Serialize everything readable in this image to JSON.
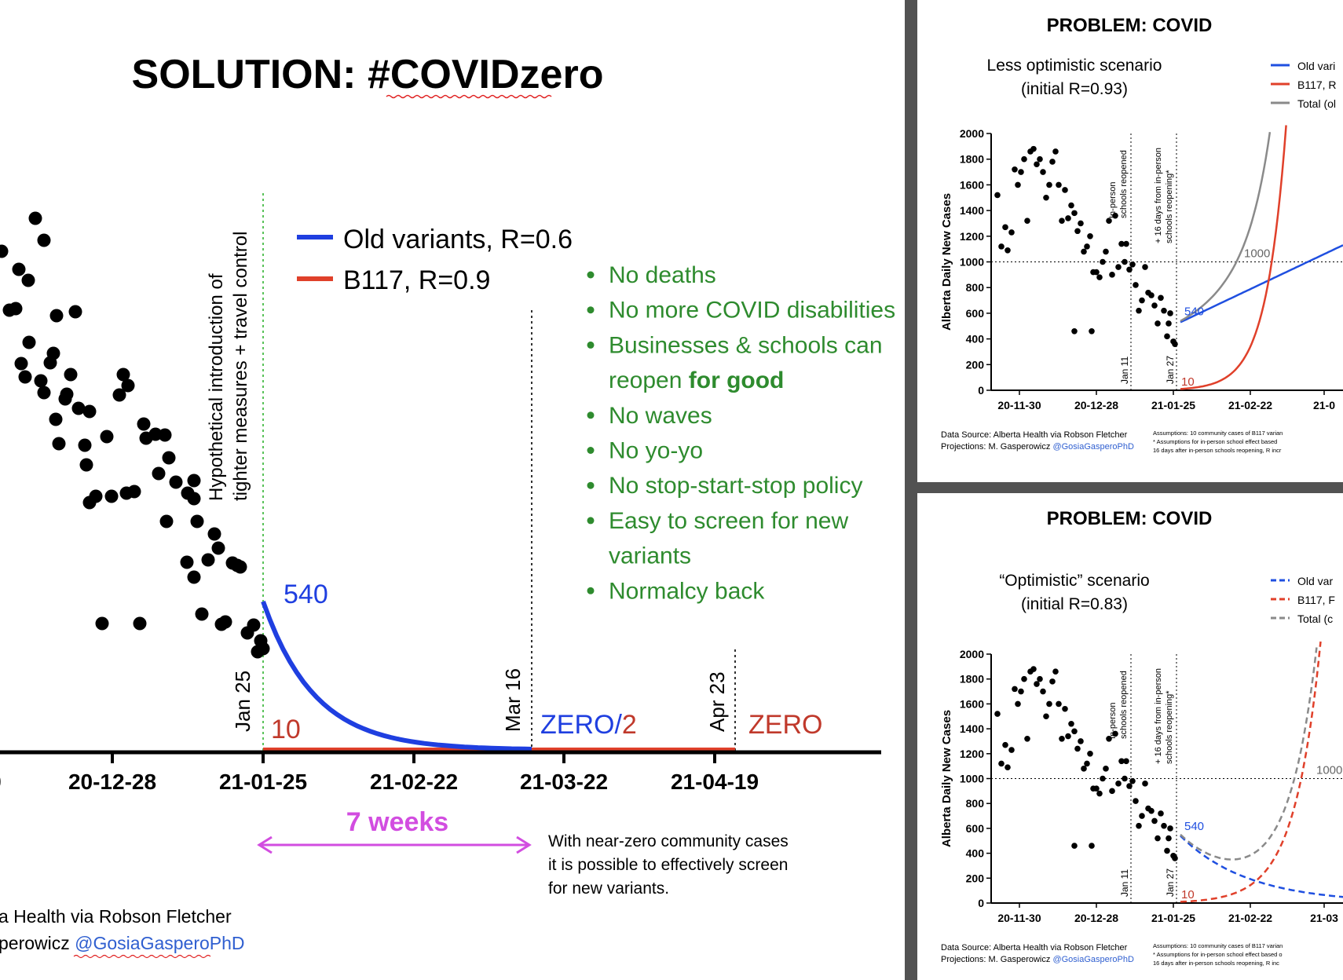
{
  "left": {
    "title": "SOLUTION: #COVIDzero",
    "vertical_annotation_line1": "Hypothetical introduction of",
    "vertical_annotation_line2": "tighter measures + travel control",
    "legend": [
      {
        "label": "Old variants, R=0.6",
        "color": "#1f3fe0"
      },
      {
        "label": "B117, R=0.9",
        "color": "#e0402a"
      }
    ],
    "bullets": [
      {
        "pre": "No deaths"
      },
      {
        "pre": "No more COVID disabilities"
      },
      {
        "pre": "Businesses & schools can"
      },
      {
        "cont": true,
        "pre": "reopen ",
        "bold": "for good"
      },
      {
        "pre": "No waves"
      },
      {
        "pre": "No yo-yo"
      },
      {
        "pre": "No stop-start-stop policy"
      },
      {
        "pre": "Easy to screen for new"
      },
      {
        "cont": true,
        "pre": "variants"
      },
      {
        "pre": "Normalcy back"
      }
    ],
    "bullet_color": "#2e8b2e",
    "vline_labels": [
      "Jan 25",
      "Mar 16",
      "Apr 23"
    ],
    "value_540": "540",
    "value_10": "10",
    "zero2_a": "ZERO/",
    "zero2_b": "2",
    "zero_label": "ZERO",
    "span_label": "7 weeks",
    "span_color": "#d24de0",
    "note_lines": [
      "With near-zero community cases",
      "it is possible to effectively screen",
      "for new variants."
    ],
    "source_line1": "a Health via Robson Fletcher",
    "source_line2_pre": "perowicz ",
    "source_line2_handle": "@GosiaGasperoPhD"
  },
  "chart_data": [
    {
      "type": "scatter",
      "title": "SOLUTION: #COVIDzero",
      "categories": [
        "0",
        "20-12-28",
        "21-01-25",
        "21-02-22",
        "21-03-22",
        "21-04-19"
      ],
      "x_tick_labels": [
        "0",
        "20-12-28",
        "21-01-25",
        "21-02-22",
        "21-03-22",
        "21-04-19"
      ],
      "series": [
        {
          "name": "Old variants, R=0.6",
          "type": "line",
          "start": 540
        },
        {
          "name": "B117, R=0.9",
          "type": "line",
          "start": 10
        }
      ],
      "annotations": [
        "540",
        "10",
        "ZERO/2",
        "ZERO",
        "7 weeks"
      ]
    },
    {
      "type": "scatter",
      "title": "PROBLEM: COVID",
      "subtitle_line1": "Less optimistic scenario",
      "subtitle_line2": "(initial R=0.93)",
      "ylabel": "Alberta Daily New Cases",
      "ylim": [
        0,
        2000
      ],
      "y_ticks": [
        "0",
        "200",
        "400",
        "600",
        "800",
        "1000",
        "1200",
        "1400",
        "1600",
        "1800",
        "2000"
      ],
      "x_ticks": [
        "20-11-30",
        "20-12-28",
        "21-01-25",
        "21-02-22",
        "21-0"
      ],
      "legend": [
        "Old vari",
        "B117, R",
        "Total (ol"
      ],
      "annotations": [
        "1000",
        "540",
        "10",
        "Jan 11",
        "Jan 27",
        "In-person",
        "schools reopened",
        "+ 16 days from in-person",
        "schools reopening*"
      ],
      "source_line1": "Data Source: Alberta Health via Robson Fletcher",
      "source_line2": "Projections: M. Gasperowicz",
      "handle": "@GosiaGasperoPhD",
      "assumptions": [
        "Assumptions: 10 community cases of B117 varian",
        "* Assumptions for in-person school effect based",
        "16 days after in-person schools reopening, R incr"
      ]
    },
    {
      "type": "scatter",
      "title": "PROBLEM: COVID",
      "subtitle_line1": "“Optimistic” scenario",
      "subtitle_line2": "(initial R=0.83)",
      "ylabel": "Alberta Daily New Cases",
      "ylim": [
        0,
        2000
      ],
      "y_ticks": [
        "0",
        "200",
        "400",
        "600",
        "800",
        "1000",
        "1200",
        "1400",
        "1600",
        "1800",
        "2000"
      ],
      "x_ticks": [
        "20-11-30",
        "20-12-28",
        "21-01-25",
        "21-02-22",
        "21-03"
      ],
      "legend": [
        "Old var",
        "B117, F",
        "Total (c"
      ],
      "annotations": [
        "1000",
        "540",
        "10",
        "Jan 11",
        "Jan 27",
        "In-person",
        "schools reopened",
        "+ 16 days from in-person",
        "schools reopening*"
      ],
      "source_line1": "Data Source: Alberta Health via Robson Fletcher",
      "source_line2": "Projections: M. Gasperowicz",
      "handle": "@GosiaGasperoPhD",
      "assumptions": [
        "Assumptions: 10 community cases of B117 varian",
        "* Assumptions for in-person school effect based o",
        "16 days after in-person schools reopening, R inc"
      ]
    }
  ]
}
